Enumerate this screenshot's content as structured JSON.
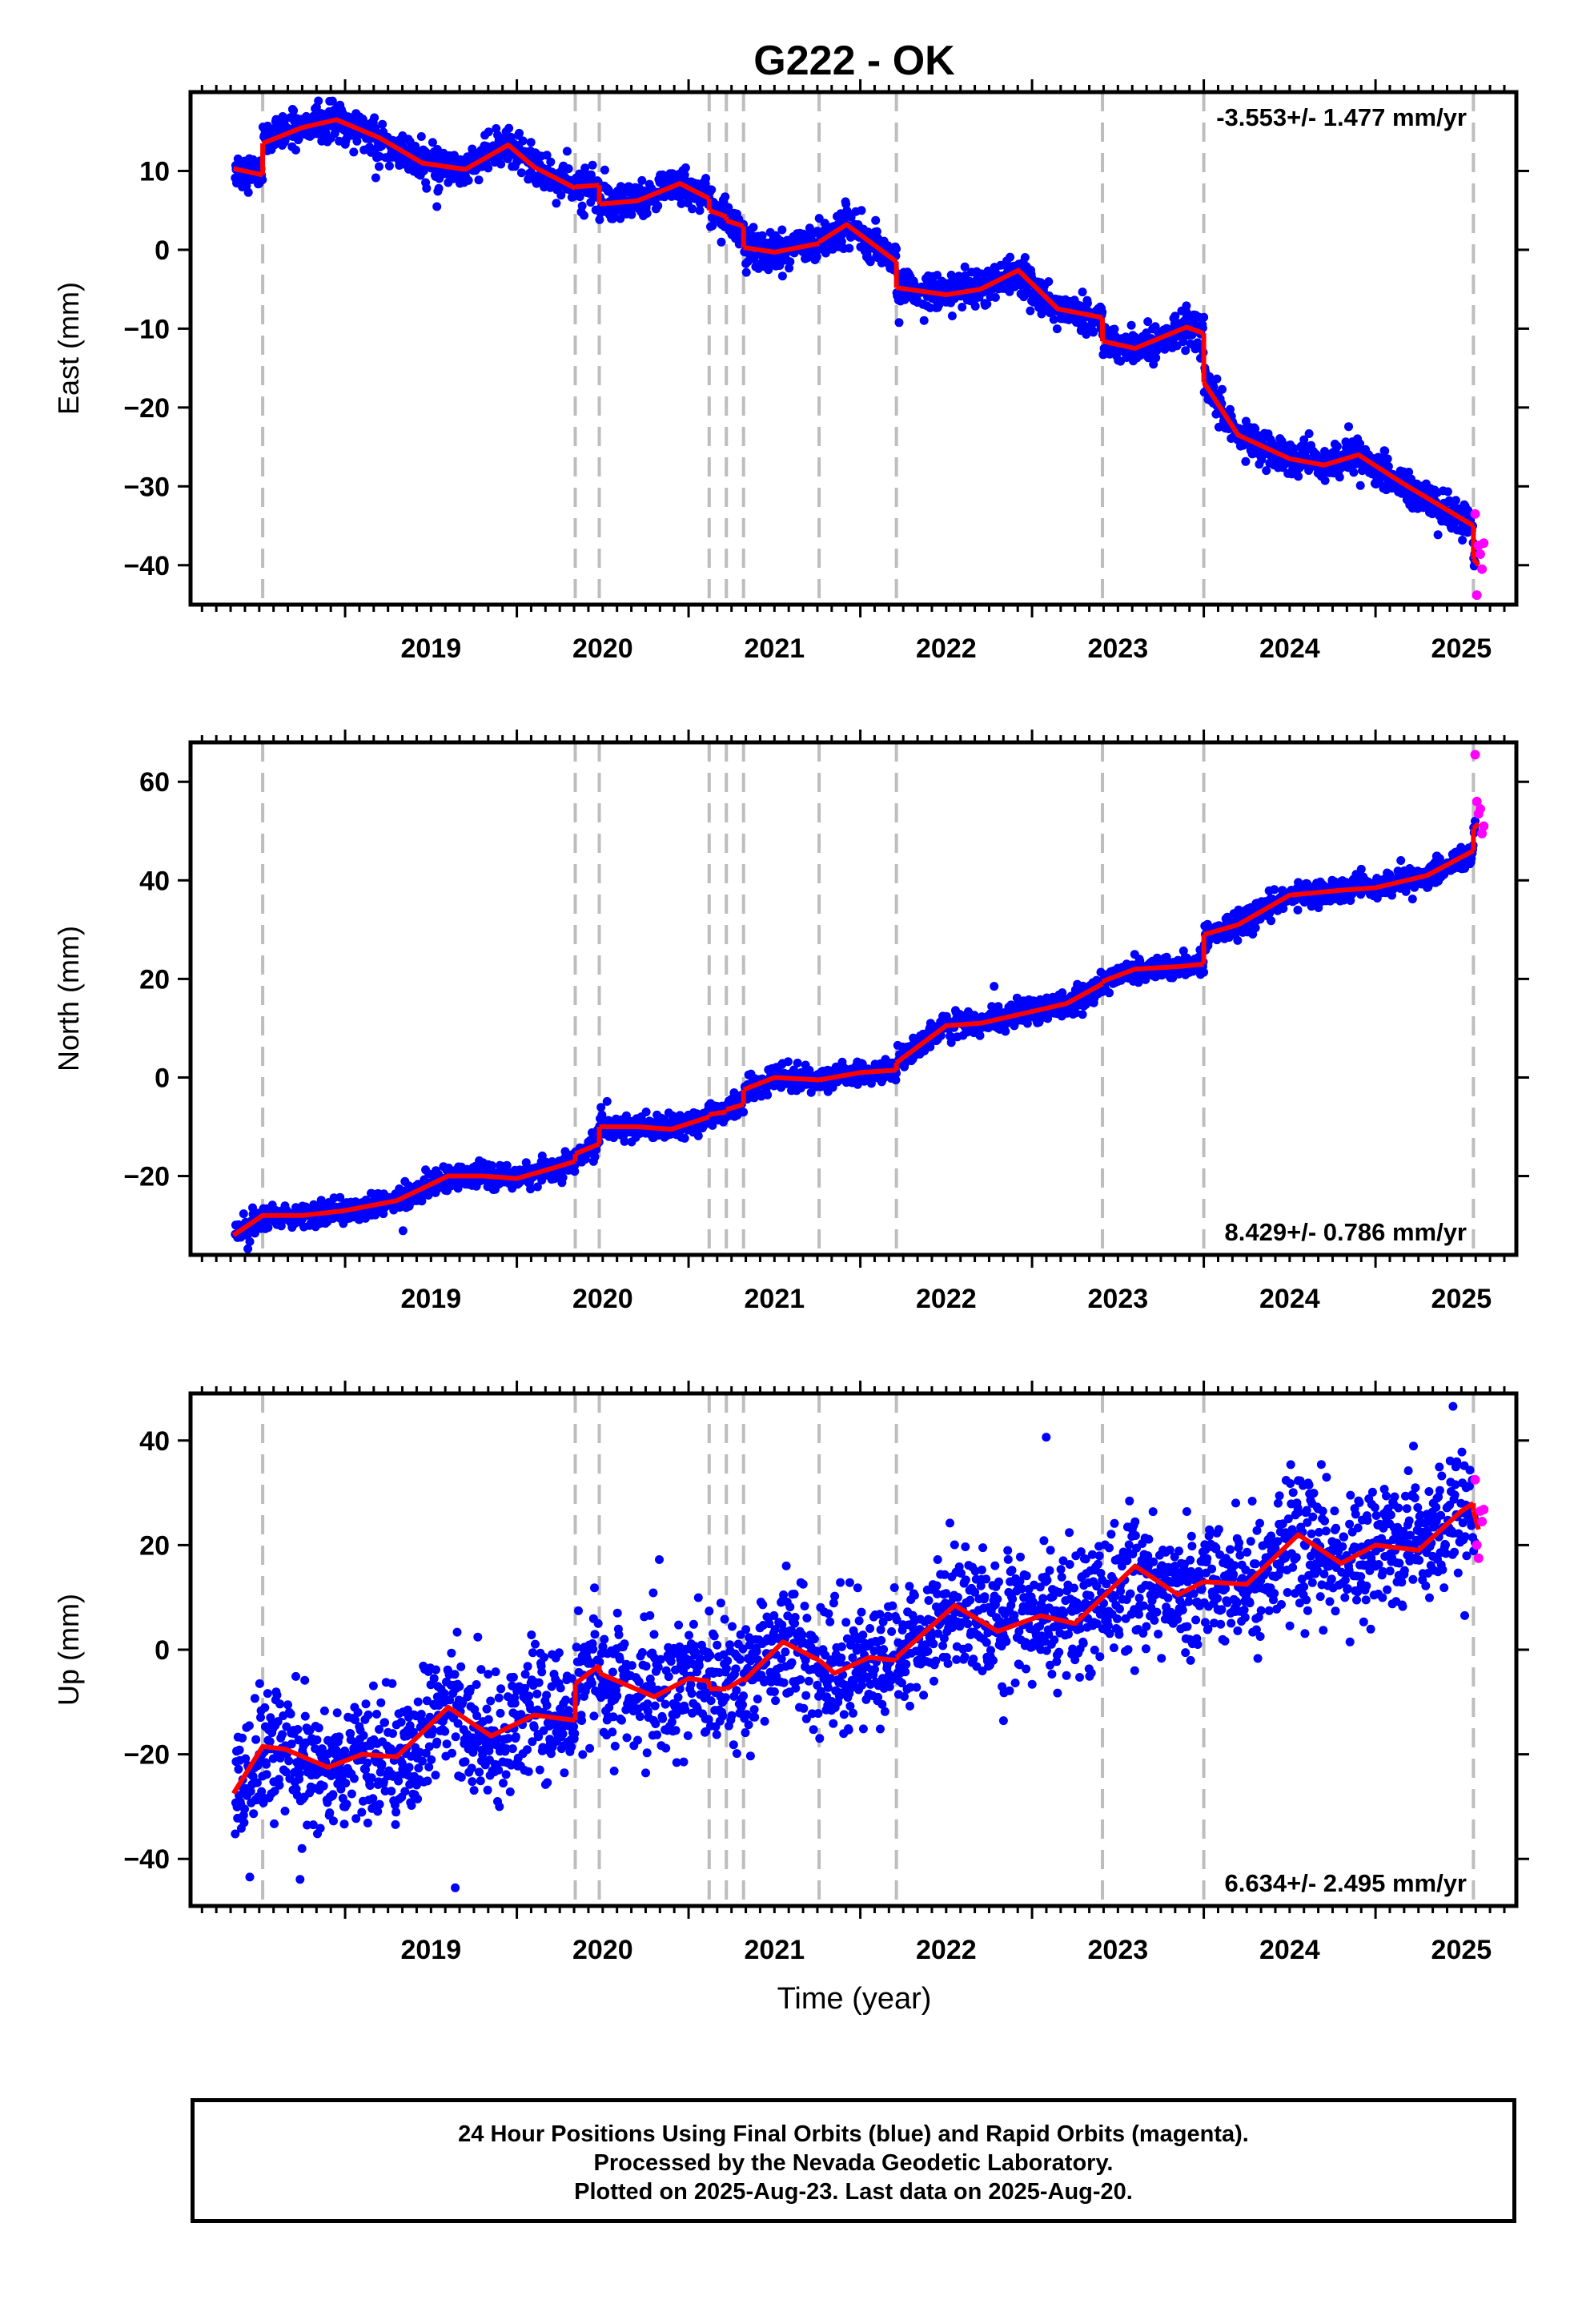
{
  "title": "G222 - OK",
  "xlabel": "Time (year)",
  "footer": {
    "line1": "24 Hour Positions Using Final Orbits (blue) and Rapid Orbits (magenta).",
    "line2": "Processed by the Nevada Geodetic Laboratory.",
    "line3": "Plotted on 2025-Aug-23. Last data on 2025-Aug-20."
  },
  "colors": {
    "final": "#0000ff",
    "rapid": "#ff00ff",
    "model": "#ff0000",
    "event_lines": "#bdbdbd"
  },
  "chart_data": [
    {
      "type": "scatter",
      "panel": "east",
      "ylabel": "East (mm)",
      "rate_label": "-3.553+/- 1.477 mm/yr",
      "rate_position": "top-right",
      "xlim": [
        2018.1,
        2025.82
      ],
      "ylim": [
        -45,
        20
      ],
      "yticks": [
        10,
        0,
        -10,
        -20,
        -30,
        -40
      ],
      "xticks": [
        2019,
        2020,
        2021,
        2022,
        2023,
        2024,
        2025
      ],
      "event_lines": [
        2018.52,
        2020.34,
        2020.48,
        2021.12,
        2021.22,
        2021.32,
        2021.76,
        2022.21,
        2023.41,
        2024.0,
        2025.57
      ],
      "model_segments": [
        {
          "x": [
            2018.35,
            2018.52
          ],
          "y": [
            10.3,
            9.5
          ]
        },
        {
          "x": [
            2018.52,
            2018.75,
            2018.95,
            2019.2,
            2019.45,
            2019.7,
            2019.95,
            2020.1,
            2020.34
          ],
          "y": [
            13.5,
            15.5,
            16.5,
            14.2,
            11,
            10.2,
            13.3,
            10.5,
            7.8
          ]
        },
        {
          "x": [
            2020.34,
            2020.48
          ],
          "y": [
            8.0,
            8.2
          ]
        },
        {
          "x": [
            2020.48,
            2020.7,
            2020.95,
            2021.12
          ],
          "y": [
            5.8,
            6.2,
            8.4,
            6.5
          ]
        },
        {
          "x": [
            2021.12,
            2021.22
          ],
          "y": [
            5.0,
            4.2
          ]
        },
        {
          "x": [
            2021.22,
            2021.32
          ],
          "y": [
            3.7,
            3.0
          ]
        },
        {
          "x": [
            2021.32,
            2021.5,
            2021.76
          ],
          "y": [
            0.3,
            -0.3,
            0.8
          ]
        },
        {
          "x": [
            2021.76,
            2021.92,
            2022.21
          ],
          "y": [
            1.0,
            3.2,
            -1.5
          ]
        },
        {
          "x": [
            2022.21,
            2022.5,
            2022.7,
            2022.92,
            2023.15,
            2023.41
          ],
          "y": [
            -4.8,
            -5.7,
            -5.0,
            -2.6,
            -7.5,
            -8.6
          ]
        },
        {
          "x": [
            2023.41,
            2023.6,
            2023.9,
            2024.0
          ],
          "y": [
            -11.6,
            -12.5,
            -9.8,
            -10.6
          ]
        },
        {
          "x": [
            2024.0,
            2024.2,
            2024.5,
            2024.7,
            2024.9,
            2025.15,
            2025.57
          ],
          "y": [
            -16.8,
            -23.5,
            -26.5,
            -27.3,
            -26,
            -29.5,
            -35.0
          ]
        },
        {
          "x": [
            2025.57,
            2025.6
          ],
          "y": [
            -39.2,
            -40.0
          ]
        }
      ],
      "rapid_points": {
        "x": [
          2025.58,
          2025.59,
          2025.6,
          2025.61,
          2025.62,
          2025.63
        ],
        "y": [
          -33.5,
          -43.8,
          -37.5,
          -38.6,
          -40.5,
          -37.2
        ]
      },
      "final_series": {
        "start": 2018.36,
        "end": 2025.58,
        "scatter_mm": 1.1,
        "note": "daily positions scattered around model"
      }
    },
    {
      "type": "scatter",
      "panel": "north",
      "ylabel": "North (mm)",
      "rate_label": "8.429+/- 0.786 mm/yr",
      "rate_position": "bottom-right",
      "xlim": [
        2018.1,
        2025.82
      ],
      "ylim": [
        -36,
        68
      ],
      "yticks": [
        60,
        40,
        20,
        0,
        -20
      ],
      "xticks": [
        2019,
        2020,
        2021,
        2022,
        2023,
        2024,
        2025
      ],
      "event_lines": [
        2018.52,
        2020.34,
        2020.48,
        2021.12,
        2021.22,
        2021.32,
        2021.76,
        2022.21,
        2023.41,
        2024.0,
        2025.57
      ],
      "model_segments": [
        {
          "x": [
            2018.35,
            2018.52,
            2018.75,
            2019.0,
            2019.3,
            2019.6,
            2019.8,
            2020.0,
            2020.2,
            2020.34
          ],
          "y": [
            -32,
            -28,
            -28,
            -27,
            -25,
            -20,
            -20,
            -20.5,
            -18.5,
            -17
          ]
        },
        {
          "x": [
            2020.34,
            2020.48
          ],
          "y": [
            -15.5,
            -13.5
          ]
        },
        {
          "x": [
            2020.48,
            2020.7,
            2020.9,
            2021.12
          ],
          "y": [
            -10,
            -10,
            -10.5,
            -8
          ]
        },
        {
          "x": [
            2021.12,
            2021.22
          ],
          "y": [
            -7.5,
            -7
          ]
        },
        {
          "x": [
            2021.22,
            2021.32
          ],
          "y": [
            -6.5,
            -5.5
          ]
        },
        {
          "x": [
            2021.32,
            2021.5,
            2021.76
          ],
          "y": [
            -2.5,
            0,
            -0.5
          ]
        },
        {
          "x": [
            2021.76,
            2022.0,
            2022.21
          ],
          "y": [
            -0.5,
            1,
            1.5
          ]
        },
        {
          "x": [
            2022.21,
            2022.5,
            2022.7,
            2022.95,
            2023.2,
            2023.41
          ],
          "y": [
            3,
            10.5,
            11,
            13,
            15,
            19
          ]
        },
        {
          "x": [
            2023.41,
            2023.6,
            2023.85,
            2024.0
          ],
          "y": [
            19.5,
            22,
            22.5,
            23
          ]
        },
        {
          "x": [
            2024.0,
            2024.2,
            2024.5,
            2024.8,
            2025.0,
            2025.3,
            2025.57
          ],
          "y": [
            29,
            31,
            37,
            38,
            38.5,
            41,
            46
          ]
        },
        {
          "x": [
            2025.57,
            2025.6
          ],
          "y": [
            50.5,
            51.5
          ]
        }
      ],
      "rapid_points": {
        "x": [
          2025.58,
          2025.59,
          2025.6,
          2025.61,
          2025.62,
          2025.63
        ],
        "y": [
          65.5,
          56,
          53.5,
          54.5,
          49.5,
          51
        ]
      },
      "final_series": {
        "start": 2018.36,
        "end": 2025.58,
        "scatter_mm": 1.2,
        "note": "daily positions scattered around model"
      }
    },
    {
      "type": "scatter",
      "panel": "up",
      "ylabel": "Up (mm)",
      "rate_label": "6.634+/- 2.495 mm/yr",
      "rate_position": "bottom-right",
      "xlim": [
        2018.1,
        2025.82
      ],
      "ylim": [
        -49,
        49
      ],
      "yticks": [
        40,
        20,
        0,
        -20,
        -40
      ],
      "xticks": [
        2019,
        2020,
        2021,
        2022,
        2023,
        2024,
        2025
      ],
      "event_lines": [
        2018.52,
        2020.34,
        2020.48,
        2021.12,
        2021.22,
        2021.32,
        2021.76,
        2022.21,
        2023.41,
        2024.0,
        2025.57
      ],
      "model_segments": [
        {
          "x": [
            2018.35,
            2018.52,
            2018.65,
            2018.9,
            2019.1,
            2019.3,
            2019.6,
            2019.85,
            2020.1,
            2020.34
          ],
          "y": [
            -27.5,
            -18.5,
            -19,
            -22.5,
            -20,
            -20.5,
            -11,
            -16.5,
            -12.5,
            -13.5
          ]
        },
        {
          "x": [
            2020.34,
            2020.48
          ],
          "y": [
            -6.5,
            -3
          ]
        },
        {
          "x": [
            2020.48,
            2020.8,
            2021.0,
            2021.12
          ],
          "y": [
            -4.5,
            -9,
            -5.5,
            -6
          ]
        },
        {
          "x": [
            2021.12,
            2021.22
          ],
          "y": [
            -7.5,
            -7.5
          ]
        },
        {
          "x": [
            2021.22,
            2021.32
          ],
          "y": [
            -7.5,
            -5.5
          ]
        },
        {
          "x": [
            2021.32,
            2021.55,
            2021.76
          ],
          "y": [
            -6,
            1.5,
            -2
          ]
        },
        {
          "x": [
            2021.76,
            2021.85,
            2022.05,
            2022.21
          ],
          "y": [
            -2,
            -4.5,
            -1.5,
            -2
          ]
        },
        {
          "x": [
            2022.21,
            2022.55,
            2022.8,
            2023.05,
            2023.25,
            2023.41
          ],
          "y": [
            -1.5,
            8.5,
            3.5,
            6.5,
            5,
            10
          ]
        },
        {
          "x": [
            2023.41,
            2023.6,
            2023.85,
            2024.0
          ],
          "y": [
            10,
            16,
            10.5,
            13
          ]
        },
        {
          "x": [
            2024.0,
            2024.25,
            2024.55,
            2024.8,
            2025.0,
            2025.25,
            2025.5,
            2025.57
          ],
          "y": [
            13,
            12.5,
            22,
            16.5,
            20,
            19,
            26.5,
            28
          ]
        },
        {
          "x": [
            2025.57,
            2025.6
          ],
          "y": [
            26.5,
            23
          ]
        }
      ],
      "rapid_points": {
        "x": [
          2025.58,
          2025.59,
          2025.6,
          2025.61,
          2025.62,
          2025.63
        ],
        "y": [
          32.5,
          20,
          17.5,
          26.5,
          24.5,
          26.8
        ]
      },
      "final_series": {
        "start": 2018.36,
        "end": 2025.58,
        "scatter_mm": 6.0,
        "note": "daily positions scattered around model"
      }
    }
  ]
}
